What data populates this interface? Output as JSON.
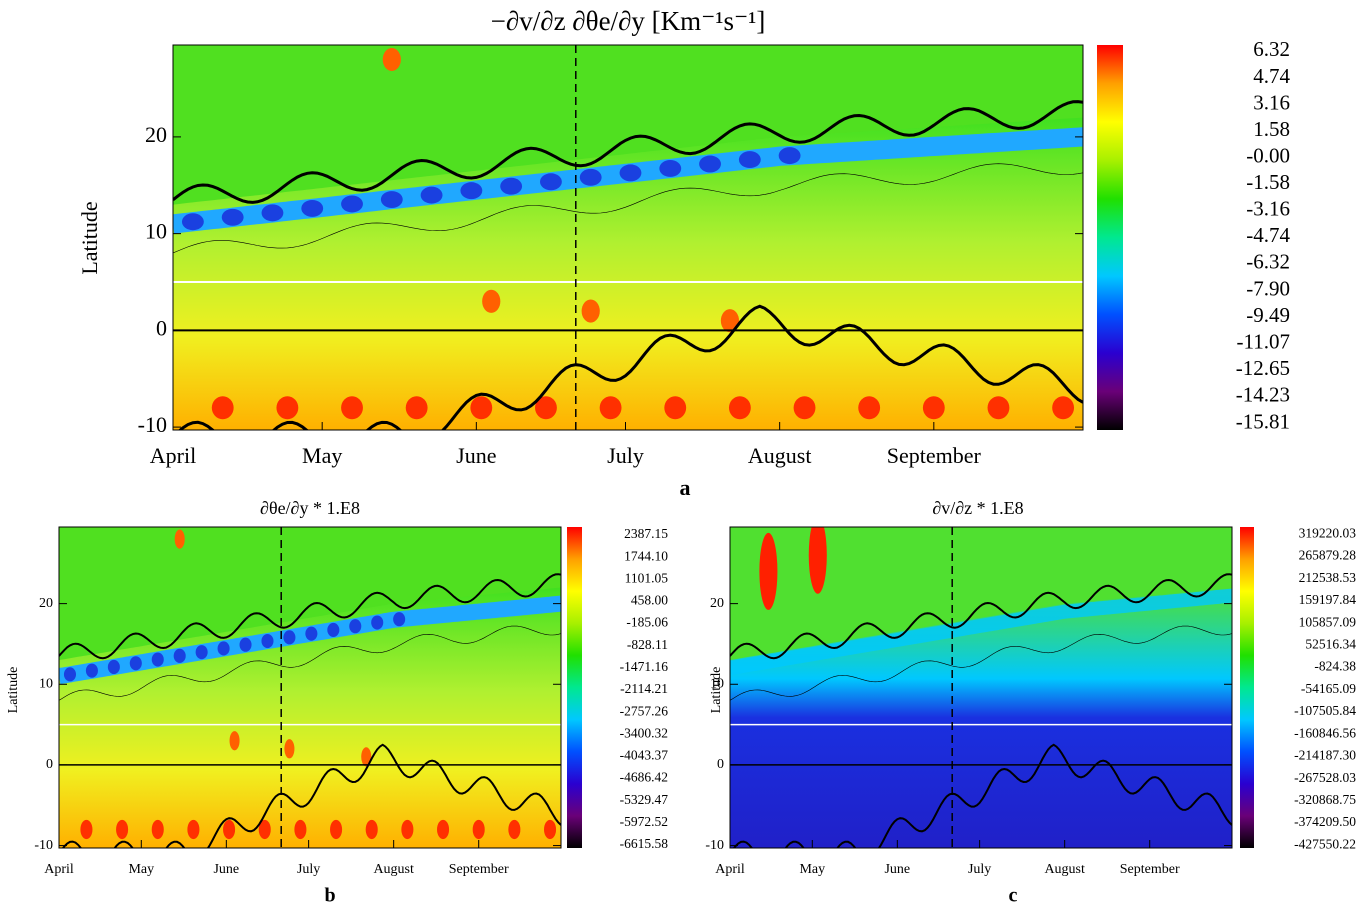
{
  "chart_data": [
    {
      "type": "heatmap",
      "panel_label": "a",
      "title": "−∂v/∂z  ∂θe/∂y [Km⁻¹s⁻¹]",
      "y_label": "Latitude",
      "xlim": [
        0,
        183
      ],
      "xticks": [
        {
          "value": 0,
          "label": "April"
        },
        {
          "value": 30,
          "label": "May"
        },
        {
          "value": 61,
          "label": "June"
        },
        {
          "value": 91,
          "label": "July"
        },
        {
          "value": 122,
          "label": "August"
        },
        {
          "value": 153,
          "label": "September"
        }
      ],
      "ylim": [
        -10.3,
        29.5
      ],
      "yticks": [
        -10,
        0,
        10,
        20
      ],
      "hlines": [
        {
          "value": 0,
          "color": "#000000"
        },
        {
          "value": 5,
          "color": "#ffffff"
        }
      ],
      "vline": 81,
      "clim": [
        -16.2,
        6.7
      ],
      "cticks": [
        6.32,
        4.74,
        3.16,
        1.58,
        {
          "value": 0,
          "label": "-0.00"
        },
        -1.58,
        -3.16,
        -4.74,
        -6.32,
        {
          "value": -7.9,
          "label": "-7.90"
        },
        -9.49,
        -11.07,
        -12.65,
        -14.23,
        -15.81
      ],
      "colorbar_colors": [
        "#000000",
        "#6a0078",
        "#2a00d0",
        "#0050ff",
        "#00c8ff",
        "#00e890",
        "#20e000",
        "#a8f000",
        "#ffff00",
        "#ffa000",
        "#ff0000"
      ]
    },
    {
      "type": "heatmap",
      "panel_label": "b",
      "title": "∂θe/∂y * 1.E8",
      "y_label": "Latitude",
      "xlim": [
        0,
        183
      ],
      "xticks": [
        {
          "value": 0,
          "label": "April"
        },
        {
          "value": 30,
          "label": "May"
        },
        {
          "value": 61,
          "label": "June"
        },
        {
          "value": 91,
          "label": "July"
        },
        {
          "value": 122,
          "label": "August"
        },
        {
          "value": 153,
          "label": "September"
        }
      ],
      "ylim": [
        -10.3,
        29.5
      ],
      "yticks": [
        -10,
        0,
        10,
        20
      ],
      "hlines": [
        {
          "value": 0,
          "color": "#000000"
        },
        {
          "value": 5,
          "color": "#ffffff"
        }
      ],
      "vline": 81,
      "clim": [
        -6700,
        2620
      ],
      "cticks": [
        2387.15,
        {
          "value": 1744.1,
          "label": "1744.10"
        },
        1101.05,
        {
          "value": 458,
          "label": "458.00"
        },
        -185.06,
        -828.11,
        -1471.16,
        -2114.21,
        -2757.26,
        -3400.32,
        -4043.37,
        -4686.42,
        -5329.47,
        -5972.52,
        -6615.58
      ],
      "colorbar_colors": [
        "#000000",
        "#6a0078",
        "#2a00d0",
        "#0050ff",
        "#00c8ff",
        "#00e890",
        "#20e000",
        "#a8f000",
        "#ffff00",
        "#ffa000",
        "#ff0000"
      ]
    },
    {
      "type": "heatmap",
      "panel_label": "c",
      "title": "∂v/∂z * 1.E8",
      "y_label": "Latitude",
      "xlim": [
        0,
        183
      ],
      "xticks": [
        {
          "value": 0,
          "label": "April"
        },
        {
          "value": 30,
          "label": "May"
        },
        {
          "value": 61,
          "label": "June"
        },
        {
          "value": 91,
          "label": "July"
        },
        {
          "value": 122,
          "label": "August"
        },
        {
          "value": 153,
          "label": "September"
        }
      ],
      "ylim": [
        -10.3,
        29.5
      ],
      "yticks": [
        -10,
        0,
        10,
        20
      ],
      "hlines": [
        {
          "value": 0,
          "color": "#000000"
        },
        {
          "value": 5,
          "color": "#ffffff"
        }
      ],
      "vline": 81,
      "clim": [
        -434000,
        337000
      ],
      "cticks": [
        319220.03,
        265879.28,
        212538.53,
        159197.84,
        105857.09,
        52516.34,
        -824.38,
        -54165.09,
        -107505.84,
        -160846.56,
        {
          "value": -214187.3,
          "label": "-214187.30"
        },
        -267528.03,
        -320868.75,
        {
          "value": -374209.5,
          "label": "-374209.50"
        },
        -427550.22
      ],
      "colorbar_colors": [
        "#000000",
        "#6a0078",
        "#2a00d0",
        "#0050ff",
        "#00c8ff",
        "#00e890",
        "#20e000",
        "#a8f000",
        "#ffff00",
        "#ffa000",
        "#ff0000"
      ]
    }
  ]
}
